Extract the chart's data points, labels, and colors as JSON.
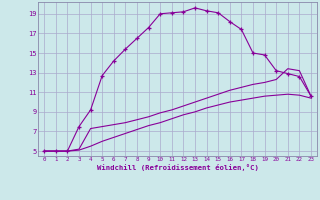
{
  "xlabel": "Windchill (Refroidissement éolien,°C)",
  "bg_color": "#cce8ea",
  "grid_color": "#aaaacc",
  "line_color": "#880099",
  "x_ticks": [
    0,
    1,
    2,
    3,
    4,
    5,
    6,
    7,
    8,
    9,
    10,
    11,
    12,
    13,
    14,
    15,
    16,
    17,
    18,
    19,
    20,
    21,
    22,
    23
  ],
  "y_ticks": [
    5,
    7,
    9,
    11,
    13,
    15,
    17,
    19
  ],
  "xlim": [
    -0.5,
    23.5
  ],
  "ylim": [
    4.5,
    20.2
  ],
  "curve1_x": [
    0,
    1,
    2,
    3,
    4,
    5,
    6,
    7,
    8,
    9,
    10,
    11,
    12,
    13,
    14,
    15,
    16,
    17,
    18,
    19,
    20,
    21,
    22,
    23
  ],
  "curve1_y": [
    5.0,
    5.0,
    5.0,
    7.5,
    9.2,
    12.7,
    14.2,
    15.4,
    16.5,
    17.6,
    19.0,
    19.1,
    19.2,
    19.6,
    19.3,
    19.1,
    18.2,
    17.4,
    15.0,
    14.8,
    13.2,
    12.9,
    12.6,
    10.6
  ],
  "curve2_x": [
    0,
    1,
    2,
    3,
    4,
    5,
    6,
    7,
    8,
    9,
    10,
    11,
    12,
    13,
    14,
    15,
    16,
    17,
    18,
    19,
    20,
    21,
    22,
    23
  ],
  "curve2_y": [
    5.0,
    5.0,
    5.0,
    5.2,
    7.3,
    7.5,
    7.7,
    7.9,
    8.2,
    8.5,
    8.9,
    9.2,
    9.6,
    10.0,
    10.4,
    10.8,
    11.2,
    11.5,
    11.8,
    12.0,
    12.3,
    13.4,
    13.2,
    10.6
  ],
  "curve3_x": [
    0,
    1,
    2,
    3,
    4,
    5,
    6,
    7,
    8,
    9,
    10,
    11,
    12,
    13,
    14,
    15,
    16,
    17,
    18,
    19,
    20,
    21,
    22,
    23
  ],
  "curve3_y": [
    5.0,
    5.0,
    5.0,
    5.1,
    5.5,
    6.0,
    6.4,
    6.8,
    7.2,
    7.6,
    7.9,
    8.3,
    8.7,
    9.0,
    9.4,
    9.7,
    10.0,
    10.2,
    10.4,
    10.6,
    10.7,
    10.8,
    10.7,
    10.4
  ]
}
